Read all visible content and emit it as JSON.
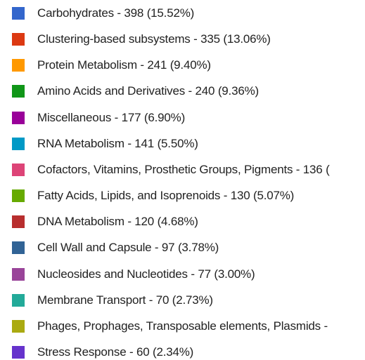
{
  "legend": {
    "items": [
      {
        "label": "Carbohydrates - 398 (15.52%)",
        "color": "#3366cc"
      },
      {
        "label": "Clustering-based subsystems - 335 (13.06%)",
        "color": "#dc3912"
      },
      {
        "label": "Protein Metabolism - 241 (9.40%)",
        "color": "#ff9900"
      },
      {
        "label": "Amino Acids and Derivatives - 240 (9.36%)",
        "color": "#109618"
      },
      {
        "label": "Miscellaneous - 177 (6.90%)",
        "color": "#990099"
      },
      {
        "label": "RNA Metabolism - 141 (5.50%)",
        "color": "#0099c6"
      },
      {
        "label": "Cofactors, Vitamins, Prosthetic Groups, Pigments - 136 (",
        "color": "#dd4477"
      },
      {
        "label": "Fatty Acids, Lipids, and Isoprenoids - 130 (5.07%)",
        "color": "#66aa00"
      },
      {
        "label": "DNA Metabolism - 120 (4.68%)",
        "color": "#b82e2e"
      },
      {
        "label": "Cell Wall and Capsule - 97 (3.78%)",
        "color": "#316395"
      },
      {
        "label": "Nucleosides and Nucleotides - 77 (3.00%)",
        "color": "#994499"
      },
      {
        "label": "Membrane Transport - 70 (2.73%)",
        "color": "#22aa99"
      },
      {
        "label": "Phages, Prophages, Transposable elements, Plasmids -",
        "color": "#aaaa11"
      },
      {
        "label": "Stress Response - 60 (2.34%)",
        "color": "#6633cc"
      }
    ]
  }
}
